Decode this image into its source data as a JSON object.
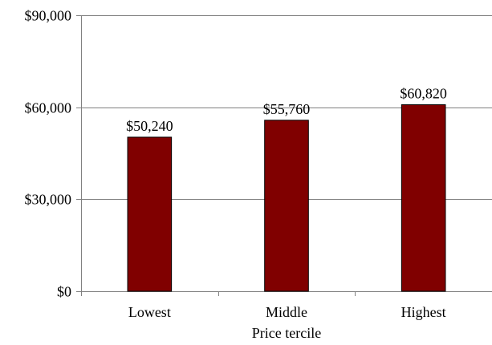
{
  "chart_data": {
    "type": "bar",
    "title": "",
    "xlabel": "Price tercile",
    "ylabel": "",
    "categories": [
      "Lowest",
      "Middle",
      "Highest"
    ],
    "series": [
      {
        "values": [
          50240,
          55760,
          60820
        ],
        "data_labels": [
          "$50,240",
          "$55,760",
          "$60,820"
        ]
      }
    ],
    "ylim": [
      0,
      90000
    ],
    "y_ticks": [
      0,
      30000,
      60000,
      90000
    ],
    "y_tick_labels": [
      "$0",
      "$30,000",
      "$60,000",
      "$90,000"
    ],
    "grid": true,
    "legend": "none",
    "bar_color": "#800000",
    "bar_outline_color": "#000000",
    "grid_color": "#808080"
  }
}
